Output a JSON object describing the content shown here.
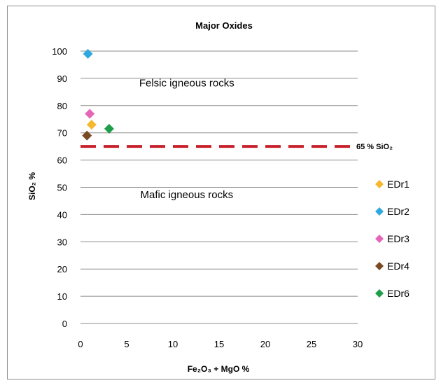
{
  "chart_data": {
    "type": "scatter",
    "title": "Major Oxides",
    "xlabel": "Fe₂O₃ + MgO %",
    "ylabel": "SiO₂ %",
    "xlim": [
      0,
      30
    ],
    "ylim": [
      0,
      100
    ],
    "x_ticks": [
      "0",
      "5",
      "10",
      "15",
      "20",
      "25",
      "30"
    ],
    "y_ticks": [
      "0",
      "10",
      "20",
      "30",
      "40",
      "50",
      "60",
      "70",
      "80",
      "90",
      "100"
    ],
    "grid": "horizontal",
    "legend_position": "right",
    "series": [
      {
        "name": "EDr1",
        "color": "#f5b82e",
        "points": [
          {
            "x": 1.2,
            "y": 73
          }
        ]
      },
      {
        "name": "EDr2",
        "color": "#2fa8e0",
        "points": [
          {
            "x": 0.8,
            "y": 99
          }
        ]
      },
      {
        "name": "EDr3",
        "color": "#e466b8",
        "points": [
          {
            "x": 1.0,
            "y": 77
          }
        ]
      },
      {
        "name": "EDr4",
        "color": "#7a4a22",
        "points": [
          {
            "x": 0.7,
            "y": 69
          }
        ]
      },
      {
        "name": "EDr6",
        "color": "#1f9e4a",
        "points": [
          {
            "x": 3.1,
            "y": 71.5
          }
        ]
      }
    ],
    "reference_line": {
      "y": 65,
      "label": "65 % SiO₂",
      "color": "#c8202a"
    },
    "annotations": [
      {
        "text": "Felsic igneous rocks",
        "x": 11.5,
        "y": 87
      },
      {
        "text": "Mafic igneous rocks",
        "x": 11.5,
        "y": 46
      }
    ]
  }
}
